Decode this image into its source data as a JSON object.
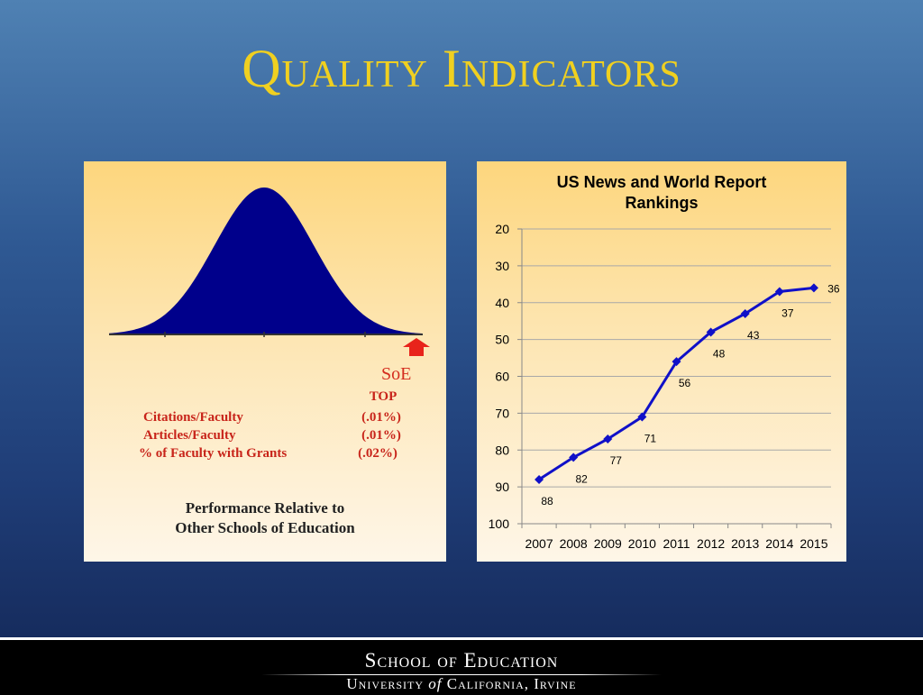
{
  "slide": {
    "title": "Quality Indicators"
  },
  "left_panel": {
    "marker_label": "SoE",
    "stats_header": "TOP",
    "stats": [
      {
        "label": "Citations/Faculty",
        "value": "(.01%)"
      },
      {
        "label": "Articles/Faculty",
        "value": "(.01%)"
      },
      {
        "label": "% of Faculty with Grants",
        "value": "(.02%)"
      }
    ],
    "caption_line1": "Performance Relative to",
    "caption_line2": "Other Schools of Education",
    "colors": {
      "curve_fill": "#00008b",
      "arrow": "#e8231b",
      "text": "#c8241a"
    },
    "icons": {
      "marker": "up-arrow-icon"
    }
  },
  "chart_data": {
    "type": "line",
    "title": "US News and World Report Rankings",
    "title_line1": "US News and World Report",
    "title_line2": "Rankings",
    "categories": [
      "2007",
      "2008",
      "2009",
      "2010",
      "2011",
      "2012",
      "2013",
      "2014",
      "2015"
    ],
    "series": [
      {
        "values": [
          88,
          82,
          77,
          71,
          56,
          48,
          43,
          37,
          36
        ]
      }
    ],
    "ylim": [
      20,
      100
    ],
    "y_inverted": true,
    "yticks": [
      20,
      30,
      40,
      50,
      60,
      70,
      80,
      90,
      100
    ],
    "grid": true,
    "legend": "none",
    "line_color": "#1010c8"
  },
  "footer": {
    "line1": "School of Education",
    "line2_a": "University",
    "line2_of": "of",
    "line2_b": "California, Irvine"
  }
}
